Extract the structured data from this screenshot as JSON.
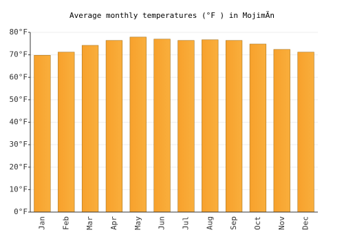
{
  "chart_data": {
    "type": "bar",
    "title": "Average monthly temperatures (°F ) in MojimÃn",
    "categories": [
      "Jan",
      "Feb",
      "Mar",
      "Apr",
      "May",
      "Jun",
      "Jul",
      "Aug",
      "Sep",
      "Oct",
      "Nov",
      "Dec"
    ],
    "values": [
      69.8,
      71.2,
      74.2,
      76.4,
      77.9,
      77.0,
      76.4,
      76.7,
      76.4,
      74.8,
      72.4,
      71.2
    ],
    "color": "#f7a12c",
    "ylim": [
      0,
      80
    ],
    "yticks": [
      {
        "value": 0,
        "label": "0°F"
      },
      {
        "value": 10,
        "label": "10°F"
      },
      {
        "value": 20,
        "label": "20°F"
      },
      {
        "value": 30,
        "label": "30°F"
      },
      {
        "value": 40,
        "label": "40°F"
      },
      {
        "value": 50,
        "label": "50°F"
      },
      {
        "value": 60,
        "label": "60°F"
      },
      {
        "value": 70,
        "label": "70°F"
      },
      {
        "value": 80,
        "label": "80°F"
      }
    ],
    "grid": true
  }
}
